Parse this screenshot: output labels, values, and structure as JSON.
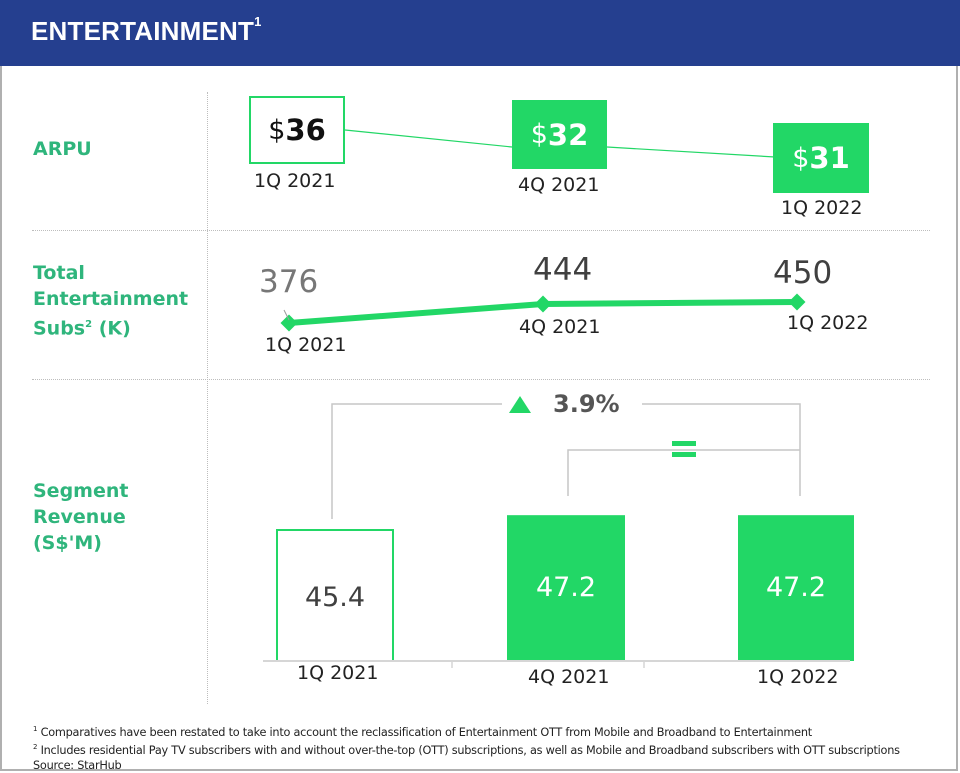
{
  "header": {
    "title": "ENTERTAINMENT",
    "title_sup": "1",
    "bg_color": "#253f8f"
  },
  "colors": {
    "accent": "#22d766",
    "label_green": "#2fb57c",
    "text_dark": "#404040"
  },
  "rows": {
    "arpu": {
      "label": "ARPU"
    },
    "subs": {
      "label_line1": "Total",
      "label_line2": "Entertainment",
      "label_line3": "Subs",
      "label_sup": "2",
      "label_tail": " (K)"
    },
    "revenue": {
      "label_line1": "Segment",
      "label_line2": "Revenue",
      "label_line3": "(S$'M)"
    }
  },
  "chart_data": [
    {
      "type": "line",
      "title": "ARPU",
      "categories": [
        "1Q 2021",
        "4Q 2021",
        "1Q 2022"
      ],
      "values": [
        36,
        32,
        31
      ],
      "value_labels": [
        {
          "currency": "$",
          "value": "36"
        },
        {
          "currency": "$",
          "value": "32"
        },
        {
          "currency": "$",
          "value": "31"
        }
      ],
      "unit": "S$"
    },
    {
      "type": "line",
      "title": "Total Entertainment Subs (K)",
      "categories": [
        "1Q 2021",
        "4Q 2021",
        "1Q 2022"
      ],
      "values": [
        376,
        444,
        450
      ],
      "value_labels": [
        "376",
        "444",
        "450"
      ]
    },
    {
      "type": "bar",
      "title": "Segment Revenue (S$'M)",
      "categories": [
        "1Q 2021",
        "4Q 2021",
        "1Q 2022"
      ],
      "values": [
        45.4,
        47.2,
        47.2
      ],
      "value_labels": [
        "45.4",
        "47.2",
        "47.2"
      ],
      "annotations": [
        {
          "from": "1Q 2021",
          "to": "1Q 2022",
          "direction": "up",
          "text": "3.9%"
        },
        {
          "from": "4Q 2021",
          "to": "1Q 2022",
          "direction": "flat",
          "text": "="
        }
      ]
    }
  ],
  "footnotes": {
    "line1": "Comparatives have been restated to take into account the reclassification of Entertainment OTT from Mobile and Broadband to Entertainment",
    "line1_sup": "1",
    "line2": "Includes residential Pay TV subscribers with and without over-the-top (OTT) subscriptions, as well as Mobile and Broadband subscribers with OTT subscriptions",
    "line2_sup": "2",
    "source": "Source: StarHub"
  }
}
